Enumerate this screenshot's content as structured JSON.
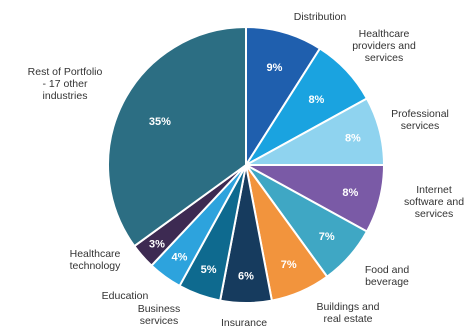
{
  "chart_data": {
    "type": "pie",
    "start_angle_deg": 0,
    "direction": "clockwise",
    "slices": [
      {
        "label": [
          "Distribution"
        ],
        "value": 9,
        "display": "9%",
        "color": "#1f5fae"
      },
      {
        "label": [
          "Healthcare",
          "providers and",
          "services"
        ],
        "value": 8,
        "display": "8%",
        "color": "#1aa3e0"
      },
      {
        "label": [
          "Professional",
          "services"
        ],
        "value": 8,
        "display": "8%",
        "color": "#8fd3ef"
      },
      {
        "label": [
          "Internet",
          "software and",
          "services"
        ],
        "value": 8,
        "display": "8%",
        "color": "#7a5aa6"
      },
      {
        "label": [
          "Food and",
          "beverage"
        ],
        "value": 7,
        "display": "7%",
        "color": "#3fa7c4"
      },
      {
        "label": [
          "Buildings and",
          "real estate"
        ],
        "value": 7,
        "display": "7%",
        "color": "#f2943d"
      },
      {
        "label": [
          "Insurance"
        ],
        "value": 6,
        "display": "6%",
        "color": "#163b5e"
      },
      {
        "label": [
          "Business",
          "services"
        ],
        "value": 5,
        "display": "5%",
        "color": "#0e6a8f"
      },
      {
        "label": [
          "Education"
        ],
        "value": 4,
        "display": "4%",
        "color": "#2da3dd"
      },
      {
        "label": [
          "Healthcare",
          "technology"
        ],
        "value": 3,
        "display": "3%",
        "color": "#3d2a52"
      },
      {
        "label": [
          "Rest of Portfolio",
          "- 17 other",
          "industries"
        ],
        "value": 35,
        "display": "35%",
        "color": "#2c6e83"
      }
    ]
  }
}
